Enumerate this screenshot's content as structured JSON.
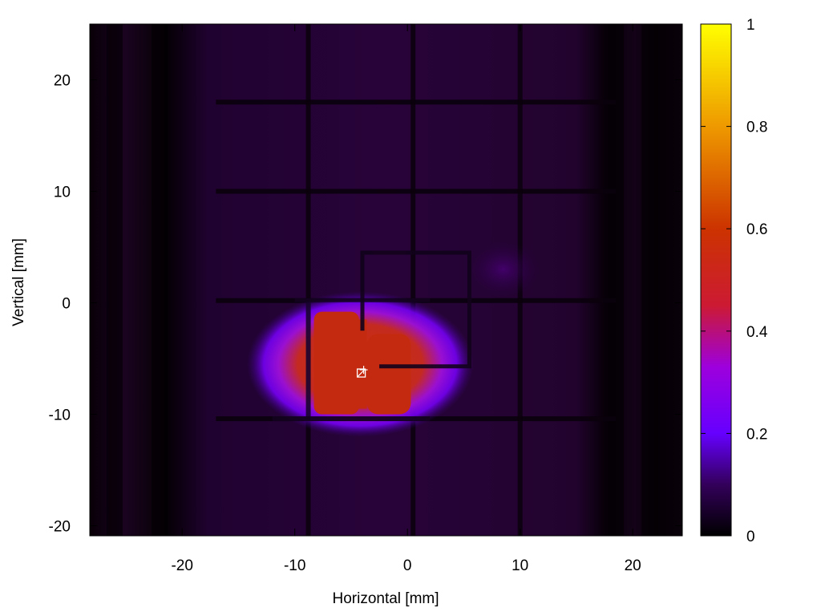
{
  "chart_data": {
    "type": "heatmap",
    "xlabel": "Horizontal [mm]",
    "ylabel": "Vertical [mm]",
    "xlim": [
      -28.2,
      24.4
    ],
    "ylim": [
      -20.9,
      25.0
    ],
    "x_ticks": [
      -20,
      -10,
      0,
      10,
      20
    ],
    "y_ticks": [
      -20,
      -10,
      0,
      10,
      20
    ],
    "colorbar": {
      "range": [
        0,
        1
      ],
      "ticks": [
        0,
        0.2,
        0.4,
        0.6,
        0.8,
        1
      ],
      "tick_labels": [
        "0",
        "0.2",
        "0.4",
        "0.6",
        "0.8",
        "1"
      ],
      "stops": [
        {
          "v": 0.0,
          "color": "#000000"
        },
        {
          "v": 0.1,
          "color": "#33005a"
        },
        {
          "v": 0.2,
          "color": "#6600ff"
        },
        {
          "v": 0.33,
          "color": "#9d00dd"
        },
        {
          "v": 0.45,
          "color": "#cc1a33"
        },
        {
          "v": 0.6,
          "color": "#cc3300"
        },
        {
          "v": 0.8,
          "color": "#ee9900"
        },
        {
          "v": 1.0,
          "color": "#ffff00"
        }
      ]
    },
    "background_level": 0.07,
    "frame_horizontal_bars_y": [
      18.0,
      10.0,
      0.2,
      -10.4
    ],
    "frame_vertical_bars_x": [
      -8.8,
      0.5,
      10.0
    ],
    "dark_edge_columns_x": [
      -26.0,
      -22.0,
      18.5,
      21.5
    ],
    "beam_spot": {
      "center": [
        -4.2,
        -5.5
      ],
      "half_width": [
        6.5,
        4.5
      ],
      "peak": 0.5
    },
    "inner_frame": {
      "x": [
        -4.0,
        5.5
      ],
      "y": [
        -5.7,
        4.5
      ]
    },
    "marker": {
      "x": -4.1,
      "y": -6.3
    }
  }
}
